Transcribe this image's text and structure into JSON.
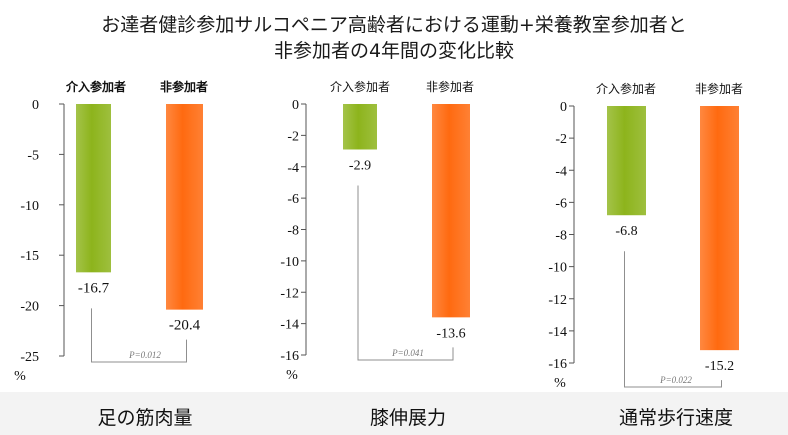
{
  "title": {
    "line1": "お達者健診参加サルコペニア高齢者における運動+栄養教室参加者と",
    "line2": "非参加者の4年間の変化比較"
  },
  "colors": {
    "participant": "#8db41c",
    "non_participant": "#ff6a10",
    "bracket": "#8f8f8f",
    "footer": "#f3f3f3"
  },
  "chart_data": [
    {
      "type": "bar",
      "title": "足の筋肉量",
      "categories": [
        "介入参加者",
        "非参加者"
      ],
      "values": [
        -16.7,
        -20.4
      ],
      "value_labels": [
        "-16.7",
        "-20.4"
      ],
      "ylim": [
        -25,
        0
      ],
      "yticks": [
        0,
        -5,
        -10,
        -15,
        -20,
        -25
      ],
      "ytick_labels": [
        "0",
        "-5",
        "-10",
        "-15",
        "-20",
        "-25"
      ],
      "ylabel": "%",
      "p_value": "P=0.012"
    },
    {
      "type": "bar",
      "title": "膝伸展力",
      "categories": [
        "介入参加者",
        "非参加者"
      ],
      "values": [
        -2.9,
        -13.6
      ],
      "value_labels": [
        "-2.9",
        "-13.6"
      ],
      "ylim": [
        -16,
        0
      ],
      "yticks": [
        0,
        -2,
        -4,
        -6,
        -8,
        -10,
        -12,
        -14,
        -16
      ],
      "ytick_labels": [
        "0",
        "-2",
        "-4",
        "-6",
        "-8",
        "-10",
        "-12",
        "-14",
        "-16"
      ],
      "ylabel": "%",
      "p_value": "P=0.041"
    },
    {
      "type": "bar",
      "title": "通常歩行速度",
      "categories": [
        "介入参加者",
        "非参加者"
      ],
      "values": [
        -6.8,
        -15.2
      ],
      "value_labels": [
        "-6.8",
        "-15.2"
      ],
      "ylim": [
        -16,
        0
      ],
      "yticks": [
        0,
        -2,
        -4,
        -6,
        -8,
        -10,
        -12,
        -14,
        -16
      ],
      "ytick_labels": [
        "0",
        "-2",
        "-4",
        "-6",
        "-8",
        "-10",
        "-12",
        "-14",
        "-16"
      ],
      "ylabel": "%",
      "p_value": "P=0.022"
    }
  ]
}
